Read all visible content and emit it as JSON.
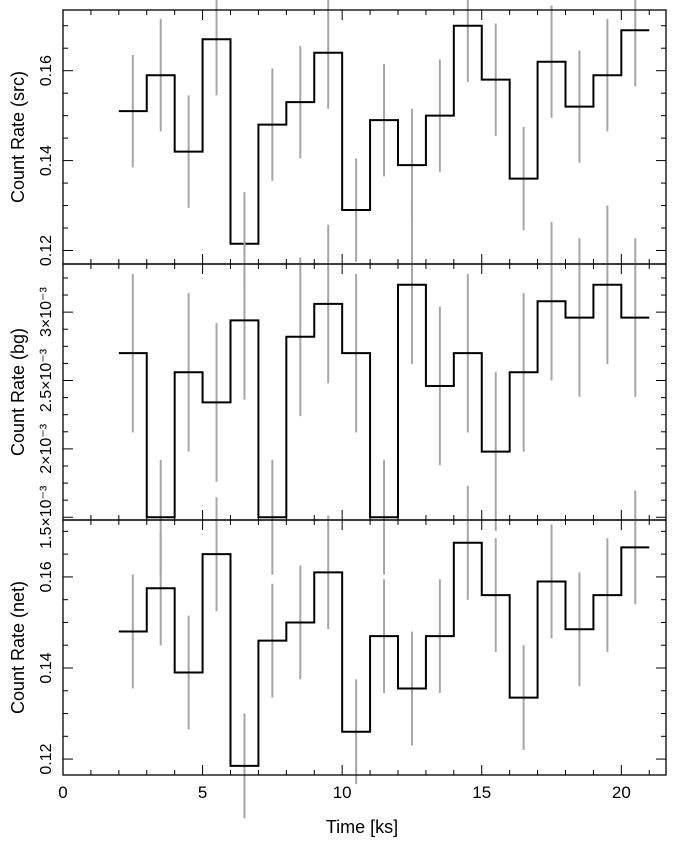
{
  "figure": {
    "xlabel": "Time [ks]",
    "xticks": [
      "0",
      "5",
      "10",
      "15",
      "20"
    ],
    "xlim": [
      0,
      21.6
    ]
  },
  "chart_data": [
    {
      "type": "line",
      "ylabel": "Count Rate (src)",
      "ylim": [
        0.117,
        0.1735
      ],
      "yticks": [
        {
          "value": 0.12,
          "label": "0.12"
        },
        {
          "value": 0.14,
          "label": "0.14"
        },
        {
          "value": 0.16,
          "label": "0.16"
        }
      ],
      "x": [
        2.5,
        3.5,
        4.5,
        5.5,
        6.5,
        7.5,
        8.5,
        9.5,
        10.5,
        11.5,
        12.5,
        13.5,
        14.5,
        15.5,
        16.5,
        17.5,
        18.5,
        19.5,
        20.5
      ],
      "values": [
        0.151,
        0.159,
        0.142,
        0.167,
        0.1215,
        0.148,
        0.153,
        0.164,
        0.129,
        0.149,
        0.139,
        0.15,
        0.17,
        0.158,
        0.136,
        0.162,
        0.152,
        0.159,
        0.169
      ],
      "errors": [
        0.0125,
        0.0125,
        0.0125,
        0.0125,
        0.0115,
        0.0125,
        0.0125,
        0.0125,
        0.0115,
        0.0125,
        0.0125,
        0.0125,
        0.0125,
        0.0125,
        0.0115,
        0.0125,
        0.0125,
        0.0125,
        0.0125
      ]
    },
    {
      "type": "line",
      "ylabel": "Count Rate (bg)",
      "ylim": [
        0.00148,
        0.003352
      ],
      "yticks": [
        {
          "value": 0.0015,
          "label": "1.5×10⁻³"
        },
        {
          "value": 0.002,
          "label": "2×10⁻³"
        },
        {
          "value": 0.0025,
          "label": "2.5×10⁻³"
        },
        {
          "value": 0.003,
          "label": "3×10⁻³"
        }
      ],
      "x": [
        2.5,
        3.5,
        4.5,
        5.5,
        6.5,
        7.5,
        8.5,
        9.5,
        10.5,
        11.5,
        12.5,
        13.5,
        14.5,
        15.5,
        16.5,
        17.5,
        18.5,
        19.5,
        20.5
      ],
      "values": [
        0.0027,
        0.0015,
        0.00256,
        0.00234,
        0.00294,
        0.0015,
        0.00282,
        0.00306,
        0.0027,
        0.0015,
        0.0032,
        0.00246,
        0.0027,
        0.00198,
        0.00256,
        0.00308,
        0.00296,
        0.0032,
        0.00296
      ],
      "errors": [
        0.00058,
        0.00042,
        0.00058,
        0.00058,
        0.00058,
        0.00042,
        0.00058,
        0.00058,
        0.00058,
        0.00042,
        0.00058,
        0.00058,
        0.00058,
        0.00058,
        0.00058,
        0.00058,
        0.00058,
        0.00058,
        0.00058
      ]
    },
    {
      "type": "line",
      "ylabel": "Count Rate (net)",
      "ylim": [
        0.1165,
        0.1725
      ],
      "yticks": [
        {
          "value": 0.12,
          "label": "0.12"
        },
        {
          "value": 0.14,
          "label": "0.14"
        },
        {
          "value": 0.16,
          "label": "0.16"
        }
      ],
      "x": [
        2.5,
        3.5,
        4.5,
        5.5,
        6.5,
        7.5,
        8.5,
        9.5,
        10.5,
        11.5,
        12.5,
        13.5,
        14.5,
        15.5,
        16.5,
        17.5,
        18.5,
        19.5,
        20.5
      ],
      "values": [
        0.148,
        0.1575,
        0.139,
        0.165,
        0.1185,
        0.146,
        0.15,
        0.161,
        0.126,
        0.147,
        0.1355,
        0.147,
        0.1675,
        0.156,
        0.1335,
        0.159,
        0.1485,
        0.156,
        0.1665
      ],
      "errors": [
        0.0125,
        0.0125,
        0.0125,
        0.0125,
        0.0115,
        0.0125,
        0.0125,
        0.0125,
        0.0115,
        0.0125,
        0.0125,
        0.0125,
        0.0125,
        0.0125,
        0.0115,
        0.0125,
        0.0125,
        0.0125,
        0.0125
      ]
    }
  ]
}
